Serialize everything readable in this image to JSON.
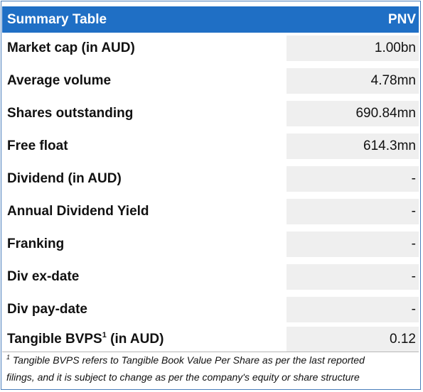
{
  "header": {
    "title": "Summary Table",
    "ticker": "PNV"
  },
  "rows": [
    {
      "label": "Market cap (in AUD)",
      "value": "1.00bn"
    },
    {
      "label": "Average volume",
      "value": "4.78mn"
    },
    {
      "label": "Shares outstanding",
      "value": "690.84mn"
    },
    {
      "label": "Free float",
      "value": "614.3mn"
    },
    {
      "label": "Dividend (in AUD)",
      "value": "-"
    },
    {
      "label": "Annual Dividend Yield",
      "value": "-"
    },
    {
      "label": "Franking",
      "value": "-"
    },
    {
      "label": "Div ex-date",
      "value": "-"
    },
    {
      "label": "Div pay-date",
      "value": "-"
    },
    {
      "label_pre": "Tangible BVPS",
      "label_sup": "1",
      "label_post": " (in AUD)",
      "value": "0.12"
    }
  ],
  "footnote": {
    "marker": "1",
    "line1": " Tangible BVPS refers to Tangible Book Value Per Share as per the last reported",
    "line2": "filings, and it is subject to change as per the company's equity or share structure"
  }
}
